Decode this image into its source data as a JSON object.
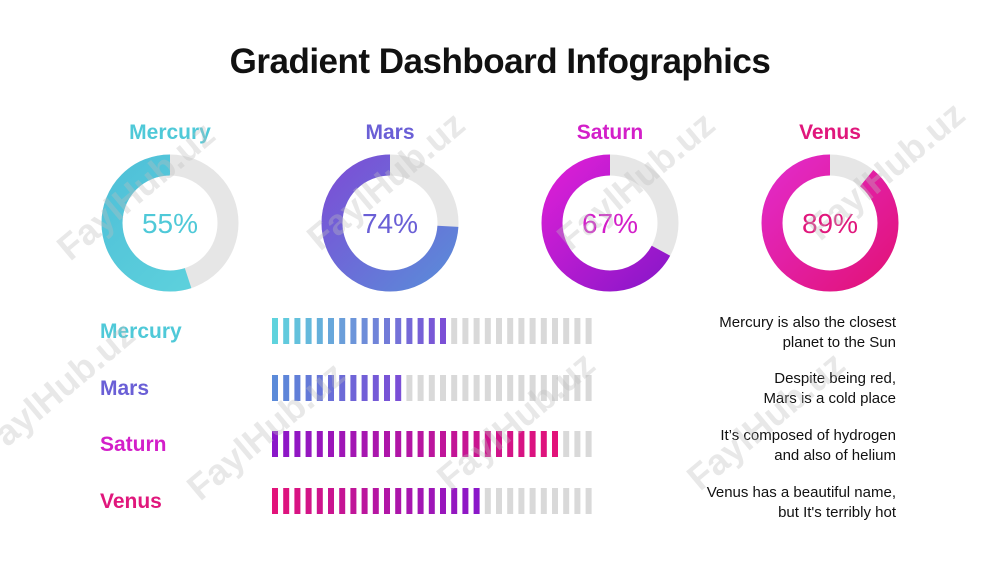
{
  "title": "Gradient Dashboard Infographics",
  "watermark": "FaylHub.uz",
  "chart_data": [
    {
      "type": "donut",
      "series": [
        {
          "name": "Mercury",
          "value": 55,
          "label": "55%",
          "color_start": "#5fd3dd",
          "color_end": "#4fc0d8"
        },
        {
          "name": "Mars",
          "value": 74,
          "label": "74%",
          "color_start": "#5b8ad9",
          "color_end": "#7b4fd6"
        },
        {
          "name": "Saturn",
          "value": 67,
          "label": "67%",
          "color_start": "#8a17c9",
          "color_end": "#dc1fd6"
        },
        {
          "name": "Venus",
          "value": 89,
          "label": "89%",
          "color_start": "#e2137a",
          "color_end": "#e22ac8"
        }
      ],
      "track_color": "#e6e6e6"
    },
    {
      "type": "bar",
      "orientation": "horizontal-segmented",
      "categories": [
        "Mercury",
        "Mars",
        "Saturn",
        "Venus"
      ],
      "values": [
        55,
        41,
        90,
        66
      ],
      "total_segments": 29,
      "colors": [
        {
          "start": "#5fd3dd",
          "end": "#7b4fd6"
        },
        {
          "start": "#5b8ad9",
          "end": "#7b4fd6"
        },
        {
          "start": "#8a17c9",
          "end": "#e2137a"
        },
        {
          "start": "#e2137a",
          "end": "#8a17c9"
        }
      ],
      "track_color": "#d9d9d9"
    }
  ],
  "label_colors": [
    "#4fc9d8",
    "#6a5fd6",
    "#d31fc9",
    "#e0177c"
  ],
  "descriptions": [
    [
      "Mercury is also the closest",
      "planet to the Sun"
    ],
    [
      "Despite being red,",
      "Mars is a cold place"
    ],
    [
      "It’s composed of hydrogen",
      "and also of helium"
    ],
    [
      "Venus has a beautiful name,",
      "but It's terribly hot"
    ]
  ]
}
